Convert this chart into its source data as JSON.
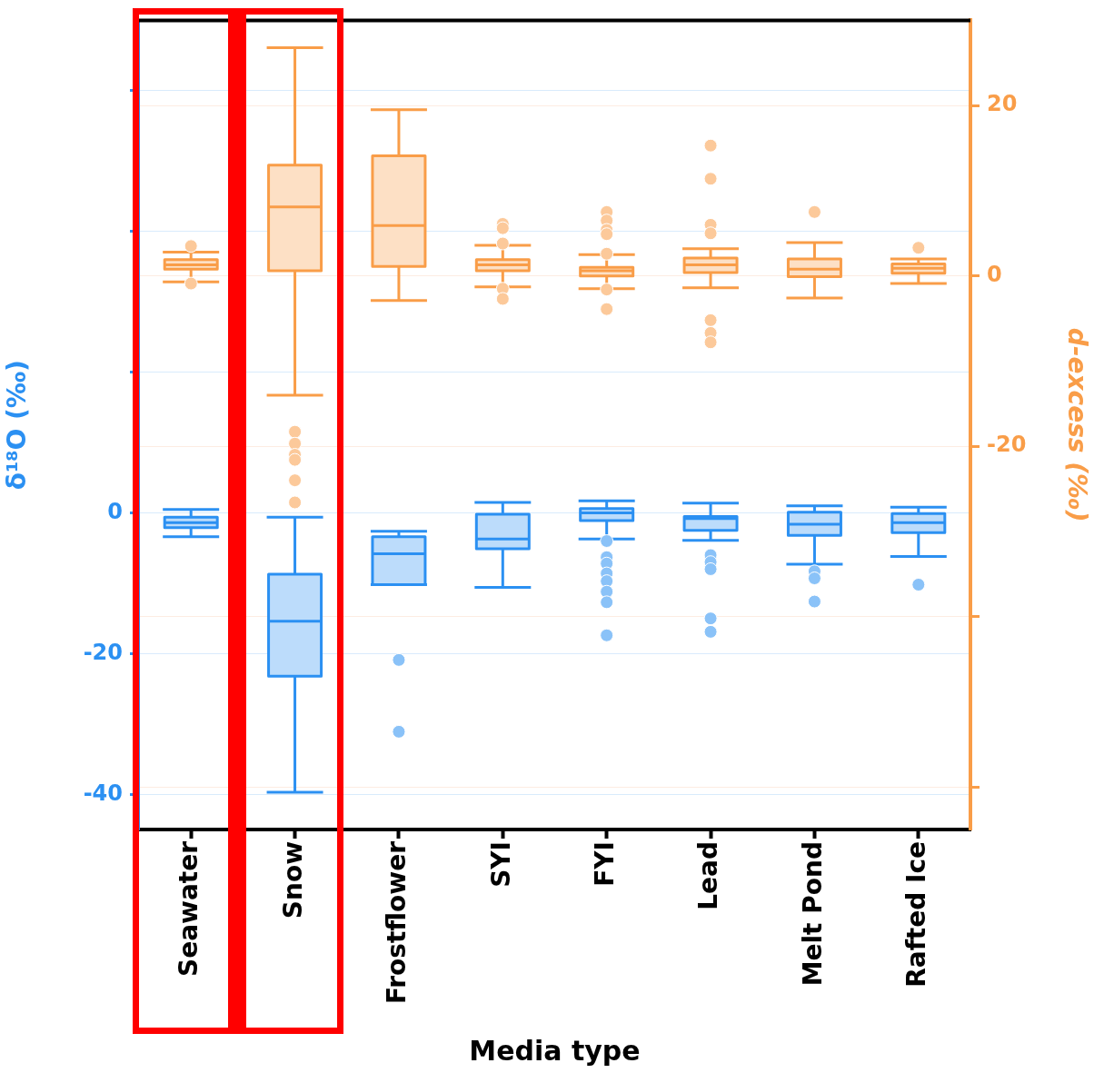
{
  "chart_data": {
    "type": "box",
    "xlabel": "Media type",
    "ylabel": "δ¹⁸O (‰)",
    "y2label": "d-excess (‰)",
    "categories": [
      "Seawater",
      "Snow",
      "Frostflower",
      "SYI",
      "FYI",
      "Lead",
      "Melt Pond",
      "Rafted Ice"
    ],
    "ylim": [
      -45,
      70
    ],
    "yticks": [
      -40,
      -20,
      0,
      {
        "value": 20,
        "label": null
      },
      {
        "value": 40,
        "label": null
      },
      {
        "value": 60,
        "label": null
      }
    ],
    "y2lim": [
      -65,
      30
    ],
    "y2ticks": [
      {
        "value": -60,
        "label": null
      },
      {
        "value": -40,
        "label": null
      },
      -20,
      0,
      20
    ],
    "grid": "y",
    "legend": false,
    "marker": "circle",
    "series": [
      {
        "color": "#bcdcfb",
        "axis": "y",
        "boxes": [
          {
            "low": -3.4,
            "q1": -2.1,
            "median": -1.4,
            "q3": -0.6,
            "high": 0.5
          },
          {
            "low": -39.7,
            "q1": -23.2,
            "median": -15.4,
            "q3": -8.7,
            "high": -0.6
          },
          {
            "low": -10.2,
            "q1": -10.2,
            "median": -5.8,
            "q3": -3.4,
            "high": -2.6,
            "outliers": [
              -20.9,
              -31.1
            ]
          },
          {
            "low": -10.6,
            "q1": -5.1,
            "median": -3.7,
            "q3": -0.2,
            "high": 1.5
          },
          {
            "low": -3.7,
            "q1": -1.1,
            "median": 0.0,
            "q3": 0.6,
            "high": 1.7,
            "outliers": [
              -4.0,
              -6.3,
              -7.2,
              -8.6,
              -9.7,
              -11.2,
              -12.7,
              -17.4
            ]
          },
          {
            "low": -3.9,
            "q1": -2.5,
            "median": -0.8,
            "q3": -0.5,
            "high": 1.4,
            "outliers": [
              -6.0,
              -7.0,
              -8.0,
              -15.0,
              -16.9
            ]
          },
          {
            "low": -7.3,
            "q1": -3.2,
            "median": -1.6,
            "q3": 0.1,
            "high": 1.0,
            "outliers": [
              -8.3,
              -9.3,
              -12.6
            ]
          },
          {
            "low": -6.2,
            "q1": -2.8,
            "median": -1.4,
            "q3": -0.1,
            "high": 0.8,
            "outliers": [
              -10.2
            ]
          }
        ]
      },
      {
        "color": "#fde0c5",
        "axis": "y2",
        "boxes": [
          {
            "low": -0.7,
            "q1": 0.8,
            "median": 1.3,
            "q3": 1.9,
            "high": 2.8,
            "outliers": [
              3.5,
              -0.9
            ]
          },
          {
            "low": -14.0,
            "q1": 0.6,
            "median": 8.1,
            "q3": 13.0,
            "high": 26.8,
            "outliers": [
              -18.3,
              -19.7,
              -21.0,
              -21.6,
              -24.0,
              -26.6
            ]
          },
          {
            "low": -2.9,
            "q1": 1.1,
            "median": 5.9,
            "q3": 14.1,
            "high": 19.5
          },
          {
            "low": -1.3,
            "q1": 0.6,
            "median": 1.3,
            "q3": 1.9,
            "high": 3.6,
            "outliers": [
              6.1,
              5.6,
              3.8,
              -1.5,
              -2.7
            ]
          },
          {
            "low": -1.5,
            "q1": 0.0,
            "median": 0.6,
            "q3": 1.0,
            "high": 2.5,
            "outliers": [
              7.5,
              6.5,
              5.4,
              4.9,
              2.6,
              -1.6,
              -3.9
            ]
          },
          {
            "low": -1.4,
            "q1": 0.4,
            "median": 1.3,
            "q3": 2.1,
            "high": 3.2,
            "outliers": [
              15.3,
              11.4,
              6.0,
              5.0,
              -5.2,
              -6.7,
              -7.8
            ]
          },
          {
            "low": -2.6,
            "q1": -0.1,
            "median": 0.8,
            "q3": 2.0,
            "high": 3.9,
            "outliers": [
              7.5
            ]
          },
          {
            "low": -0.9,
            "q1": 0.3,
            "median": 0.9,
            "q3": 1.4,
            "high": 2.0,
            "outliers": [
              3.3
            ]
          }
        ]
      }
    ]
  }
}
